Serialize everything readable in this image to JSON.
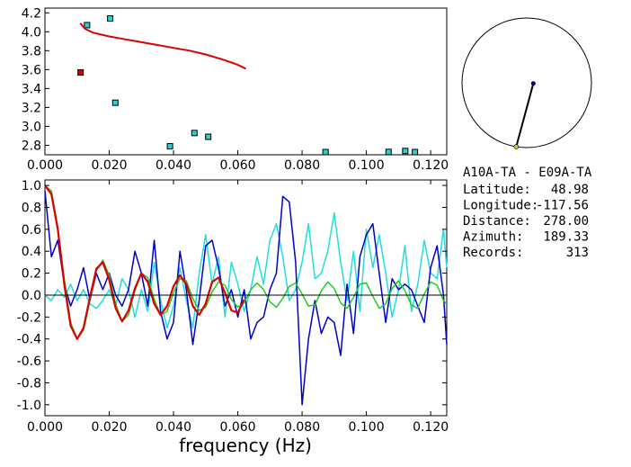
{
  "station_info": {
    "pair": "A10A-TA - E09A-TA",
    "lines": [
      {
        "label": "Latitude:",
        "value": "48.98"
      },
      {
        "label": "Longitude:",
        "value": "-117.56"
      },
      {
        "label": "Distance:",
        "value": "278.00"
      },
      {
        "label": "Azimuth:",
        "value": "189.33"
      },
      {
        "label": "Records:",
        "value": "313"
      }
    ]
  },
  "colors": {
    "axes": "#000000",
    "dispersion_curve": "#dd0000",
    "marker_fill": "#33cccc",
    "marker_fill_selected": "#dd0000",
    "measured_blue": "#0000cc",
    "measured_cyan": "#22dddd",
    "model_green": "#22cc22",
    "model_red": "#dd0000",
    "map_station": "#000066",
    "map_event": "#cccc22"
  },
  "chart_data": [
    {
      "type": "scatter",
      "title": "",
      "xlabel": "",
      "ylabel": "",
      "xlim": [
        0.0,
        0.125
      ],
      "ylim": [
        2.7,
        4.25
      ],
      "x_ticks": [
        "0.000",
        "0.020",
        "0.040",
        "0.060",
        "0.080",
        "0.100",
        "0.120"
      ],
      "y_ticks": [
        "2.8",
        "3.0",
        "3.2",
        "3.4",
        "3.6",
        "3.8",
        "4.0",
        "4.2"
      ],
      "series": [
        {
          "kind": "markers",
          "color_key": "marker_fill",
          "x": [
            0.0131,
            0.0203,
            0.0219,
            0.0389,
            0.0465,
            0.0508,
            0.0873,
            0.1069,
            0.1121,
            0.1151
          ],
          "y": [
            4.07,
            4.14,
            3.25,
            2.79,
            2.93,
            2.89,
            2.72,
            2.73,
            2.74,
            2.7
          ]
        },
        {
          "kind": "markers",
          "color_key": "marker_fill_selected",
          "x": [
            0.0111
          ],
          "y": [
            3.57
          ]
        },
        {
          "kind": "line",
          "color_key": "dispersion_curve",
          "x": [
            0.011,
            0.0125,
            0.015,
            0.02,
            0.025,
            0.03,
            0.035,
            0.04,
            0.045,
            0.05,
            0.055,
            0.06,
            0.0625
          ],
          "y": [
            4.09,
            4.03,
            3.99,
            3.95,
            3.92,
            3.89,
            3.86,
            3.83,
            3.8,
            3.76,
            3.71,
            3.65,
            3.61
          ]
        }
      ]
    },
    {
      "type": "line",
      "title": "",
      "xlabel": "frequency (Hz)",
      "ylabel": "",
      "xlim": [
        0.0,
        0.125
      ],
      "ylim": [
        -1.1,
        1.05
      ],
      "x_ticks": [
        "0.000",
        "0.020",
        "0.040",
        "0.060",
        "0.080",
        "0.100",
        "0.120"
      ],
      "y_ticks": [
        "1.0",
        "0.8",
        "0.6",
        "0.4",
        "0.2",
        "0.0",
        "-0.2",
        "-0.4",
        "-0.6",
        "-0.8",
        "-1.0"
      ],
      "zero_line": true,
      "series": [
        {
          "color_key": "measured_cyan",
          "x": [
            0.0,
            0.002,
            0.004,
            0.006,
            0.008,
            0.01,
            0.012,
            0.014,
            0.016,
            0.018,
            0.02,
            0.022,
            0.024,
            0.026,
            0.028,
            0.03,
            0.032,
            0.034,
            0.036,
            0.038,
            0.04,
            0.042,
            0.044,
            0.046,
            0.048,
            0.05,
            0.052,
            0.054,
            0.056,
            0.058,
            0.06,
            0.062,
            0.064,
            0.066,
            0.068,
            0.07,
            0.072,
            0.074,
            0.076,
            0.078,
            0.08,
            0.082,
            0.084,
            0.086,
            0.088,
            0.09,
            0.092,
            0.094,
            0.096,
            0.098,
            0.1,
            0.102,
            0.104,
            0.106,
            0.108,
            0.11,
            0.112,
            0.114,
            0.116,
            0.118,
            0.12,
            0.122,
            0.124,
            0.125
          ],
          "y": [
            0.0,
            -0.05,
            0.05,
            -0.02,
            0.1,
            -0.05,
            0.05,
            -0.08,
            -0.12,
            -0.05,
            0.05,
            -0.1,
            0.15,
            0.05,
            -0.2,
            0.05,
            -0.15,
            0.3,
            -0.05,
            -0.3,
            -0.1,
            0.25,
            -0.05,
            -0.3,
            0.2,
            0.55,
            0.1,
            0.35,
            -0.2,
            0.3,
            0.1,
            -0.15,
            0.05,
            0.35,
            0.1,
            0.5,
            0.65,
            0.35,
            -0.05,
            0.05,
            0.3,
            0.65,
            0.15,
            0.2,
            0.4,
            0.75,
            0.3,
            -0.05,
            0.4,
            -0.15,
            0.6,
            0.25,
            0.55,
            0.2,
            -0.2,
            0.05,
            0.45,
            -0.15,
            0.1,
            0.5,
            0.2,
            0.15,
            0.6,
            0.25
          ]
        },
        {
          "color_key": "measured_blue",
          "x": [
            0.0,
            0.002,
            0.004,
            0.006,
            0.008,
            0.01,
            0.012,
            0.014,
            0.016,
            0.018,
            0.02,
            0.022,
            0.024,
            0.026,
            0.028,
            0.03,
            0.032,
            0.034,
            0.036,
            0.038,
            0.04,
            0.042,
            0.044,
            0.046,
            0.048,
            0.05,
            0.052,
            0.054,
            0.056,
            0.058,
            0.06,
            0.062,
            0.064,
            0.066,
            0.068,
            0.07,
            0.072,
            0.074,
            0.076,
            0.078,
            0.08,
            0.082,
            0.084,
            0.086,
            0.088,
            0.09,
            0.092,
            0.094,
            0.096,
            0.098,
            0.1,
            0.102,
            0.104,
            0.106,
            0.108,
            0.11,
            0.112,
            0.114,
            0.116,
            0.118,
            0.12,
            0.122,
            0.124,
            0.125
          ],
          "y": [
            0.95,
            0.35,
            0.5,
            0.1,
            -0.1,
            0.05,
            0.25,
            -0.05,
            0.2,
            0.05,
            0.2,
            0.0,
            -0.1,
            0.05,
            0.4,
            0.2,
            -0.1,
            0.5,
            -0.15,
            -0.4,
            -0.25,
            0.4,
            0.05,
            -0.45,
            -0.05,
            0.45,
            0.5,
            0.25,
            -0.1,
            0.05,
            -0.2,
            0.05,
            -0.4,
            -0.25,
            -0.2,
            0.05,
            0.2,
            0.9,
            0.85,
            0.3,
            -1.0,
            -0.4,
            -0.05,
            -0.35,
            -0.2,
            -0.25,
            -0.55,
            0.1,
            -0.35,
            0.35,
            0.55,
            0.65,
            0.2,
            -0.25,
            0.15,
            0.05,
            0.1,
            0.05,
            -0.1,
            -0.25,
            0.25,
            0.45,
            0.0,
            -0.45
          ]
        },
        {
          "color_key": "model_green",
          "x": [
            0.0,
            0.002,
            0.004,
            0.006,
            0.008,
            0.01,
            0.012,
            0.014,
            0.016,
            0.018,
            0.02,
            0.022,
            0.024,
            0.026,
            0.028,
            0.03,
            0.032,
            0.034,
            0.036,
            0.038,
            0.04,
            0.042,
            0.044,
            0.046,
            0.048,
            0.05,
            0.052,
            0.054,
            0.056,
            0.058,
            0.06,
            0.062,
            0.064,
            0.066,
            0.068,
            0.07,
            0.072,
            0.074,
            0.076,
            0.078,
            0.08,
            0.082,
            0.084,
            0.086,
            0.088,
            0.09,
            0.092,
            0.094,
            0.096,
            0.098,
            0.1,
            0.102,
            0.104,
            0.106,
            0.108,
            0.11,
            0.112,
            0.114,
            0.116,
            0.118,
            0.12,
            0.122,
            0.124,
            0.125
          ],
          "y": [
            1.0,
            0.95,
            0.62,
            0.15,
            -0.25,
            -0.4,
            -0.32,
            -0.05,
            0.22,
            0.32,
            0.18,
            -0.08,
            -0.24,
            -0.18,
            0.04,
            0.2,
            0.16,
            -0.04,
            -0.18,
            -0.15,
            0.02,
            0.15,
            0.13,
            -0.03,
            -0.14,
            -0.11,
            0.03,
            0.12,
            0.09,
            -0.04,
            -0.11,
            -0.07,
            0.05,
            0.11,
            0.05,
            -0.06,
            -0.11,
            -0.03,
            0.08,
            0.11,
            0.01,
            -0.1,
            -0.09,
            0.04,
            0.12,
            0.06,
            -0.07,
            -0.12,
            -0.02,
            0.1,
            0.11,
            -0.01,
            -0.12,
            -0.08,
            0.06,
            0.13,
            0.04,
            -0.09,
            -0.12,
            0.01,
            0.12,
            0.09,
            -0.05,
            -0.08
          ]
        },
        {
          "color_key": "model_red",
          "x": [
            0.0,
            0.002,
            0.004,
            0.006,
            0.008,
            0.01,
            0.012,
            0.014,
            0.016,
            0.018,
            0.02,
            0.022,
            0.024,
            0.026,
            0.028,
            0.03,
            0.032,
            0.034,
            0.036,
            0.038,
            0.04,
            0.042,
            0.044,
            0.046,
            0.048,
            0.05,
            0.052,
            0.054,
            0.056,
            0.058,
            0.06,
            0.062
          ],
          "y": [
            1.0,
            0.92,
            0.6,
            0.1,
            -0.28,
            -0.4,
            -0.3,
            -0.02,
            0.24,
            0.3,
            0.14,
            -0.12,
            -0.24,
            -0.14,
            0.06,
            0.2,
            0.12,
            -0.08,
            -0.18,
            -0.1,
            0.08,
            0.18,
            0.1,
            -0.1,
            -0.18,
            -0.08,
            0.12,
            0.16,
            0.02,
            -0.14,
            -0.16,
            -0.04
          ]
        }
      ]
    }
  ],
  "map": {
    "shape": "circle",
    "station_azimuth_deg": 189.33,
    "path_fraction": 0.65
  }
}
